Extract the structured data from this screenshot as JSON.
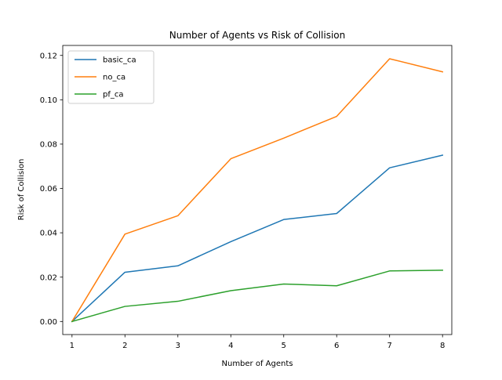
{
  "chart_data": {
    "type": "line",
    "title": "Number of Agents vs Risk of Collision",
    "xlabel": "Number of Agents",
    "ylabel": "Risk of Collision",
    "x": [
      1,
      2,
      3,
      4,
      5,
      6,
      7,
      8
    ],
    "xlim": [
      0.825,
      8.175
    ],
    "ylim": [
      -0.0059,
      0.1245
    ],
    "xticks": [
      1,
      2,
      3,
      4,
      5,
      6,
      7,
      8
    ],
    "yticks": [
      0.0,
      0.02,
      0.04,
      0.06,
      0.08,
      0.1,
      0.12
    ],
    "ytick_labels": [
      "0.00",
      "0.02",
      "0.04",
      "0.06",
      "0.08",
      "0.10",
      "0.12"
    ],
    "grid": false,
    "legend_placement": "upper-left",
    "series": [
      {
        "name": "basic_ca",
        "color": "#1f77b4",
        "values": [
          0.0,
          0.0222,
          0.0251,
          0.036,
          0.046,
          0.0487,
          0.0693,
          0.075
        ]
      },
      {
        "name": "no_ca",
        "color": "#ff7f0e",
        "values": [
          0.0,
          0.0394,
          0.0477,
          0.0734,
          0.0827,
          0.0925,
          0.1185,
          0.1126
        ]
      },
      {
        "name": "pf_ca",
        "color": "#2ca02c",
        "values": [
          0.0,
          0.0068,
          0.0091,
          0.0139,
          0.0169,
          0.0161,
          0.0228,
          0.0231
        ]
      }
    ]
  }
}
